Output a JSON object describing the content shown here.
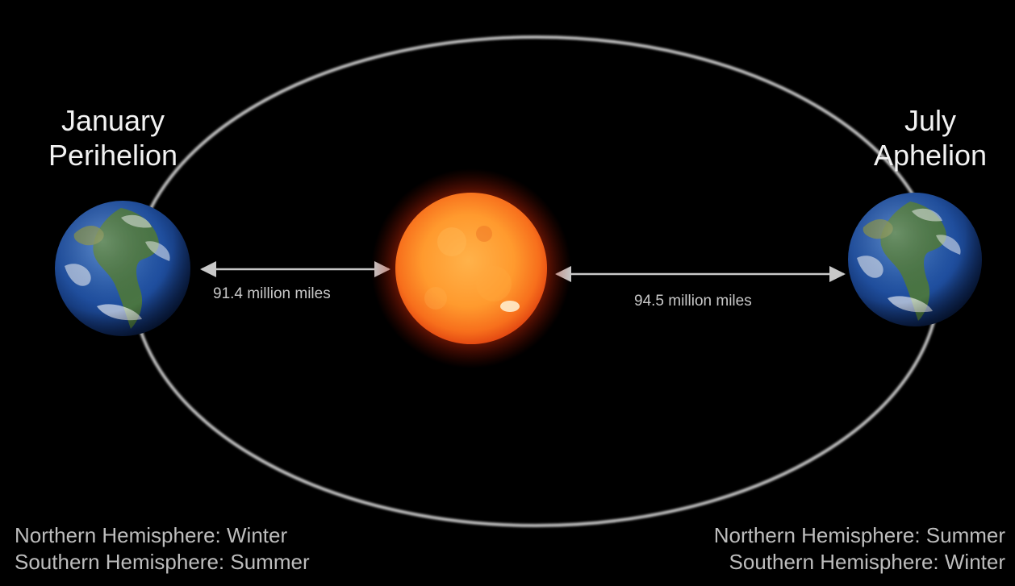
{
  "perihelion": {
    "month": "January",
    "name": "Perihelion",
    "distance": "91.4 million miles",
    "northern": "Northern Hemisphere: Winter",
    "southern": "Southern Hemisphere: Summer"
  },
  "aphelion": {
    "month": "July",
    "name": "Aphelion",
    "distance": "94.5 million miles",
    "northern": "Northern Hemisphere: Summer",
    "southern": "Southern Hemisphere: Winter"
  },
  "colors": {
    "background": "#000000",
    "orbit": "#bdbdbd",
    "arrow": "#c8c8c8",
    "sun_core": "#ffa040",
    "sun_edge": "#e8501a",
    "ocean": "#1f4fa0",
    "land": "#4f7a3a"
  },
  "icons": {
    "sun": "sun-icon",
    "earth": "earth-globe-icon"
  }
}
